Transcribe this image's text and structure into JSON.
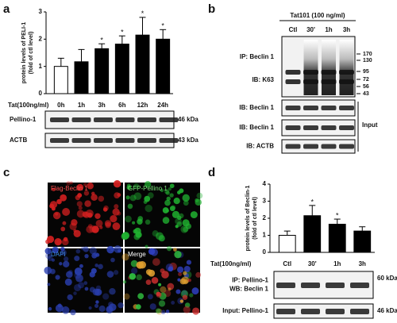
{
  "panel_labels": [
    "a",
    "b",
    "c",
    "d"
  ],
  "chart_data": [
    {
      "type": "bar",
      "ylabel": [
        "protein levels of PELI-1",
        "(fold of ctl level)"
      ],
      "xlabel": "Tat(100ng/ml)",
      "categories": [
        "0h",
        "1h",
        "3h",
        "6h",
        "12h",
        "24h"
      ],
      "values": [
        1.0,
        1.17,
        1.65,
        1.82,
        2.15,
        2.0
      ],
      "errors": [
        0.3,
        0.45,
        0.18,
        0.3,
        0.65,
        0.35
      ],
      "colors": [
        "#ffffff",
        "#000000",
        "#000000",
        "#000000",
        "#000000",
        "#000000"
      ],
      "significance": [
        null,
        null,
        "*",
        "*",
        "*",
        "*"
      ],
      "ylim": [
        0,
        3
      ],
      "yticks": [
        0,
        1,
        2,
        3
      ]
    },
    {
      "type": "bar",
      "ylabel": [
        "protein levels of Beclin-1",
        "(fold of ctl level)"
      ],
      "xlabel": "Tat(100ng/ml)",
      "categories": [
        "Ctl",
        "30'",
        "1h",
        "3h"
      ],
      "values": [
        1.0,
        2.15,
        1.65,
        1.25
      ],
      "errors": [
        0.25,
        0.6,
        0.3,
        0.25
      ],
      "colors": [
        "#ffffff",
        "#000000",
        "#000000",
        "#000000"
      ],
      "significance": [
        null,
        "*",
        "*",
        null
      ],
      "ylim": [
        0,
        4
      ],
      "yticks": [
        0,
        1,
        2,
        3,
        4
      ]
    }
  ],
  "blots_a": [
    {
      "label": "Pellino-1",
      "size": "46 kDa"
    },
    {
      "label": "ACTB",
      "size": "43 kDa"
    }
  ],
  "blots_b": {
    "treatment": "Tat101 (100 ng/ml)",
    "lanes": [
      "Ctl",
      "30'",
      "1h",
      "3h"
    ],
    "ip": [
      "IP: Beclin 1",
      "IB: K63"
    ],
    "markers": [
      170,
      130,
      95,
      72,
      56,
      43
    ],
    "input_rows": [
      "IB: Beclin 1",
      "IB: Beclin 1",
      "IB: ACTB"
    ],
    "input_label": "Input"
  },
  "blots_d": [
    {
      "label": [
        "IP: Pellino-1",
        "WB: Beclin 1"
      ],
      "size": "60 kDa"
    },
    {
      "label": [
        "Input: Pellino-1"
      ],
      "size": "46 kDa"
    }
  ],
  "microscopy": [
    "Flag-Beclin 1",
    "GFP-Pellino 1",
    "DAPI",
    "Merge"
  ]
}
